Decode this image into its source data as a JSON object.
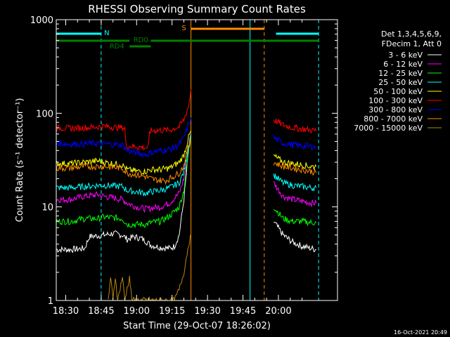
{
  "footer_timestamp": "16-Oct-2021 20:49",
  "chart_data": {
    "type": "line",
    "title": "RHESSI Observing Summary Count Rates",
    "xlabel": "Start Time (29-Oct-07 18:26:02)",
    "ylabel": "Count Rate (s⁻¹ detector⁻¹)",
    "x_unit": "minutes of day (18:30 = 1110)",
    "x_ticks": [
      "18:30",
      "18:45",
      "19:00",
      "19:15",
      "19:30",
      "19:45",
      "20:00"
    ],
    "y_ticks": [
      "1",
      "10",
      "100",
      "1000"
    ],
    "y_scale": "log",
    "ylim": [
      1,
      1000
    ],
    "legend": {
      "header": [
        "Det 1,3,4,5,6,9,",
        "FDecim 1, Att 0"
      ],
      "placement": "right",
      "entries": [
        {
          "label": "3 - 6 keV",
          "color": "#ffffff"
        },
        {
          "label": "6 - 12 keV",
          "color": "#ff00ff"
        },
        {
          "label": "12 - 25 keV",
          "color": "#00ff00"
        },
        {
          "label": "25 - 50 keV",
          "color": "#00ffff"
        },
        {
          "label": "50 - 100 keV",
          "color": "#ffff00"
        },
        {
          "label": "100 - 300 keV",
          "color": "#ff0000"
        },
        {
          "label": "300 - 800 keV",
          "color": "#0000ff"
        },
        {
          "label": "800 - 7000 keV",
          "color": "#ff8c00"
        },
        {
          "label": "7000 - 15000 keV",
          "color": "#b8860b"
        }
      ]
    },
    "bars": [
      {
        "label": "N",
        "color": "#00ffff",
        "segments": [
          [
            1106,
            1125
          ],
          [
            1199,
            1217
          ]
        ]
      },
      {
        "label": "S",
        "color": "#ff8c00",
        "segments": [
          [
            1163,
            1194
          ]
        ]
      },
      {
        "label": "RD0",
        "color": "#008000",
        "segments": [
          [
            1106,
            1137
          ],
          [
            1146,
            1217
          ]
        ]
      },
      {
        "label": "RD4",
        "color": "#008000",
        "segments": [
          [
            1137,
            1146
          ]
        ]
      }
    ],
    "vlines": [
      {
        "x": 1106,
        "color": "#00ffff",
        "style": "solid"
      },
      {
        "x": 1125,
        "color": "#00ffff",
        "style": "dashed"
      },
      {
        "x": 1163,
        "color": "#ff8c00",
        "style": "solid"
      },
      {
        "x": 1188,
        "color": "#00ffff",
        "style": "solid"
      },
      {
        "x": 1194,
        "color": "#ff8c00",
        "style": "dashed"
      },
      {
        "x": 1217,
        "color": "#00ffff",
        "style": "dashed"
      }
    ],
    "series": [
      {
        "name": "3 - 6 keV",
        "color": "#ffffff",
        "segments": [
          [
            [
              1106,
              3.5
            ],
            [
              1112,
              3.5
            ],
            [
              1118,
              3.6
            ],
            [
              1120,
              4.8
            ],
            [
              1126,
              5.0
            ],
            [
              1130,
              5.2
            ],
            [
              1134,
              5.0
            ],
            [
              1136,
              4.5
            ],
            [
              1139,
              4.8
            ],
            [
              1142,
              4.6
            ],
            [
              1144,
              4.3
            ],
            [
              1146,
              3.9
            ],
            [
              1150,
              3.7
            ],
            [
              1154,
              3.6
            ],
            [
              1156,
              3.8
            ],
            [
              1158,
              5
            ],
            [
              1160,
              12
            ],
            [
              1162,
              40
            ],
            [
              1163,
              60
            ]
          ],
          [
            [
              1198,
              7
            ],
            [
              1202,
              5
            ],
            [
              1206,
              4.2
            ],
            [
              1210,
              3.8
            ],
            [
              1214,
              3.6
            ],
            [
              1216,
              3.5
            ]
          ]
        ]
      },
      {
        "name": "6 - 12 keV",
        "color": "#ff00ff",
        "segments": [
          [
            [
              1106,
              12
            ],
            [
              1112,
              12
            ],
            [
              1118,
              13
            ],
            [
              1124,
              13.5
            ],
            [
              1126,
              13
            ],
            [
              1134,
              12
            ],
            [
              1136,
              11
            ],
            [
              1140,
              10
            ],
            [
              1144,
              9.5
            ],
            [
              1146,
              9.7
            ],
            [
              1150,
              10
            ],
            [
              1154,
              11
            ],
            [
              1158,
              14
            ],
            [
              1160,
              20
            ],
            [
              1162,
              45
            ],
            [
              1163,
              60
            ]
          ],
          [
            [
              1198,
              18
            ],
            [
              1202,
              13
            ],
            [
              1206,
              12
            ],
            [
              1210,
              11.5
            ],
            [
              1214,
              11
            ],
            [
              1216,
              11
            ]
          ]
        ]
      },
      {
        "name": "12 - 25 keV",
        "color": "#00ff00",
        "segments": [
          [
            [
              1106,
              7
            ],
            [
              1112,
              7
            ],
            [
              1118,
              7.5
            ],
            [
              1124,
              7.5
            ],
            [
              1126,
              7.8
            ],
            [
              1134,
              7.5
            ],
            [
              1136,
              6.5
            ],
            [
              1140,
              6.5
            ],
            [
              1144,
              6.5
            ],
            [
              1146,
              6.8
            ],
            [
              1150,
              7
            ],
            [
              1154,
              8
            ],
            [
              1158,
              10
            ],
            [
              1160,
              15
            ],
            [
              1162,
              40
            ],
            [
              1163,
              55
            ]
          ],
          [
            [
              1198,
              10
            ],
            [
              1202,
              7.5
            ],
            [
              1206,
              7
            ],
            [
              1210,
              7
            ],
            [
              1214,
              6.8
            ],
            [
              1216,
              6.8
            ]
          ]
        ]
      },
      {
        "name": "25 - 50 keV",
        "color": "#00ffff",
        "segments": [
          [
            [
              1106,
              16
            ],
            [
              1112,
              16
            ],
            [
              1118,
              16.5
            ],
            [
              1124,
              17
            ],
            [
              1126,
              17
            ],
            [
              1134,
              16.5
            ],
            [
              1136,
              15
            ],
            [
              1140,
              14.5
            ],
            [
              1144,
              14
            ],
            [
              1146,
              14.5
            ],
            [
              1150,
              15
            ],
            [
              1154,
              16
            ],
            [
              1158,
              18
            ],
            [
              1160,
              24
            ],
            [
              1162,
              45
            ],
            [
              1163,
              60
            ]
          ],
          [
            [
              1198,
              22
            ],
            [
              1202,
              18
            ],
            [
              1206,
              17
            ],
            [
              1210,
              16.5
            ],
            [
              1214,
              16
            ],
            [
              1216,
              16
            ]
          ]
        ]
      },
      {
        "name": "50 - 100 keV",
        "color": "#ffff00",
        "segments": [
          [
            [
              1106,
              29
            ],
            [
              1112,
              29
            ],
            [
              1118,
              30
            ],
            [
              1124,
              31
            ],
            [
              1126,
              30
            ],
            [
              1134,
              28
            ],
            [
              1136,
              25
            ],
            [
              1140,
              24
            ],
            [
              1144,
              24
            ],
            [
              1146,
              25
            ],
            [
              1150,
              25
            ],
            [
              1154,
              26
            ],
            [
              1158,
              30
            ],
            [
              1160,
              36
            ],
            [
              1162,
              55
            ],
            [
              1163,
              65
            ]
          ],
          [
            [
              1198,
              35
            ],
            [
              1202,
              30
            ],
            [
              1206,
              29
            ],
            [
              1210,
              28
            ],
            [
              1214,
              27
            ],
            [
              1216,
              27
            ]
          ]
        ]
      },
      {
        "name": "100 - 300 keV",
        "color": "#ff0000",
        "segments": [
          [
            [
              1106,
              70
            ],
            [
              1112,
              69
            ],
            [
              1118,
              70
            ],
            [
              1124,
              72
            ],
            [
              1126,
              73
            ],
            [
              1130,
              71
            ],
            [
              1134,
              70
            ],
            [
              1135,
              70
            ],
            [
              1135.5,
              45
            ],
            [
              1140,
              44
            ],
            [
              1144,
              43
            ],
            [
              1145,
              43
            ],
            [
              1145.5,
              65
            ],
            [
              1150,
              66
            ],
            [
              1154,
              66
            ],
            [
              1158,
              72
            ],
            [
              1160,
              85
            ],
            [
              1162,
              120
            ],
            [
              1163,
              180
            ]
          ],
          [
            [
              1198,
              85
            ],
            [
              1202,
              75
            ],
            [
              1206,
              70
            ],
            [
              1210,
              68
            ],
            [
              1214,
              66
            ],
            [
              1216,
              65
            ]
          ]
        ]
      },
      {
        "name": "300 - 800 keV",
        "color": "#0000ff",
        "segments": [
          [
            [
              1106,
              48
            ],
            [
              1112,
              47
            ],
            [
              1118,
              47
            ],
            [
              1124,
              48
            ],
            [
              1126,
              47
            ],
            [
              1134,
              46
            ],
            [
              1136,
              40
            ],
            [
              1140,
              38
            ],
            [
              1144,
              36
            ],
            [
              1146,
              38
            ],
            [
              1150,
              40
            ],
            [
              1154,
              41
            ],
            [
              1158,
              46
            ],
            [
              1160,
              55
            ],
            [
              1162,
              75
            ],
            [
              1163,
              90
            ]
          ],
          [
            [
              1198,
              55
            ],
            [
              1202,
              48
            ],
            [
              1206,
              46
            ],
            [
              1210,
              45
            ],
            [
              1214,
              44
            ],
            [
              1216,
              44
            ]
          ]
        ]
      },
      {
        "name": "800 - 7000 keV",
        "color": "#ff8c00",
        "segments": [
          [
            [
              1106,
              26
            ],
            [
              1112,
              26
            ],
            [
              1118,
              27
            ],
            [
              1124,
              27
            ],
            [
              1126,
              27
            ],
            [
              1134,
              26
            ],
            [
              1136,
              23
            ],
            [
              1140,
              22
            ],
            [
              1144,
              21
            ],
            [
              1146,
              20
            ],
            [
              1148,
              19.5
            ],
            [
              1152,
              19
            ],
            [
              1154,
              20
            ],
            [
              1158,
              23
            ],
            [
              1160,
              28
            ],
            [
              1162,
              45
            ],
            [
              1163,
              55
            ]
          ],
          [
            [
              1198,
              30
            ],
            [
              1202,
              27
            ],
            [
              1206,
              26
            ],
            [
              1210,
              25
            ],
            [
              1214,
              24
            ],
            [
              1216,
              23
            ]
          ]
        ]
      },
      {
        "name": "7000 - 15000 keV",
        "color": "#b8860b",
        "segments": [
          [
            [
              1128,
              1
            ],
            [
              1129,
              1.8
            ],
            [
              1130,
              1
            ],
            [
              1131,
              1.8
            ],
            [
              1132,
              1
            ],
            [
              1134,
              1.8
            ],
            [
              1135,
              1
            ],
            [
              1137,
              1.8
            ],
            [
              1138,
              1
            ],
            [
              1156,
              1
            ],
            [
              1158,
              1.3
            ],
            [
              1160,
              2
            ],
            [
              1162,
              4
            ],
            [
              1163,
              5
            ]
          ]
        ]
      }
    ]
  }
}
